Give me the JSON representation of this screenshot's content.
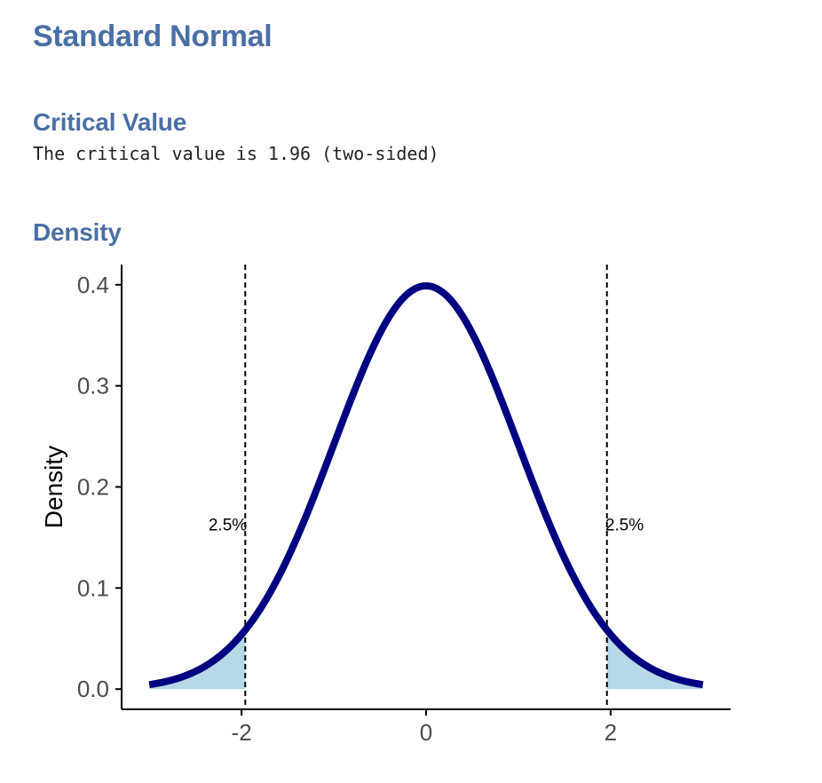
{
  "page": {
    "title": "Standard Normal",
    "section_critical": "Critical Value",
    "critical_text": "The critical value is 1.96 (two-sided)",
    "section_density": "Density"
  },
  "chart_data": {
    "type": "area",
    "title": "",
    "xlabel": "",
    "ylabel": "Density",
    "xlim": [
      -3.3,
      3.3
    ],
    "ylim": [
      -0.02,
      0.42
    ],
    "x_ticks": [
      -2,
      0,
      2
    ],
    "x_tick_labels": [
      "-2",
      "0",
      "2"
    ],
    "y_ticks": [
      0.0,
      0.1,
      0.2,
      0.3,
      0.4
    ],
    "y_tick_labels": [
      "0.0",
      "0.1",
      "0.2",
      "0.3",
      "0.4"
    ],
    "distribution": "standard normal",
    "series": [
      {
        "x": [
          -3.0,
          -2.8,
          -2.6,
          -2.4,
          -2.2,
          -2.0,
          -1.8,
          -1.6,
          -1.4,
          -1.2,
          -1.0,
          -0.8,
          -0.6,
          -0.4,
          -0.2,
          0.0,
          0.2,
          0.4,
          0.6,
          0.8,
          1.0,
          1.2,
          1.4,
          1.6,
          1.8,
          2.0,
          2.2,
          2.4,
          2.6,
          2.8,
          3.0
        ],
        "y": [
          0.0044,
          0.0079,
          0.0136,
          0.0224,
          0.0355,
          0.054,
          0.079,
          0.1109,
          0.1497,
          0.1942,
          0.242,
          0.2897,
          0.3332,
          0.3683,
          0.391,
          0.3989,
          0.391,
          0.3683,
          0.3332,
          0.2897,
          0.242,
          0.1942,
          0.1497,
          0.1109,
          0.079,
          0.054,
          0.0355,
          0.0224,
          0.0136,
          0.0079,
          0.0044
        ]
      }
    ],
    "critical_values": [
      -1.96,
      1.96
    ],
    "shaded_regions": [
      {
        "from": -3.0,
        "to": -1.96
      },
      {
        "from": 1.96,
        "to": 3.0
      }
    ],
    "annotations": [
      {
        "text": "2.5%",
        "x": -2.15,
        "y": 0.163
      },
      {
        "text": "2.5%",
        "x": 2.15,
        "y": 0.163
      }
    ],
    "colors": {
      "curve": "#000080",
      "fill": "#b7d8e6",
      "vline": "#000000",
      "heading": "#4a6fa5"
    },
    "grid": false,
    "legend": "none"
  }
}
